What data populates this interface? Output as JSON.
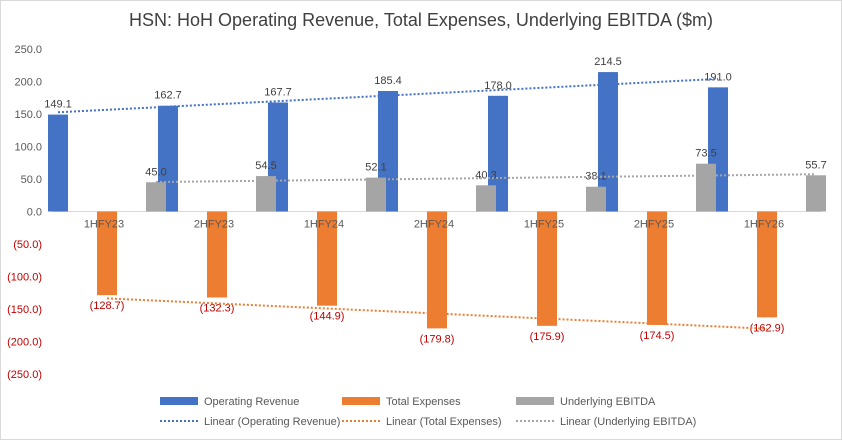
{
  "chart_data": {
    "type": "bar",
    "title": "HSN: HoH Operating Revenue, Total Expenses, Underlying EBITDA ($m)",
    "categories": [
      "1HFY23",
      "2HFY23",
      "1HFY24",
      "2HFY24",
      "1HFY25",
      "2HFY25",
      "1HFY26"
    ],
    "series": [
      {
        "name": "Operating Revenue",
        "color": "#4472c4",
        "values": [
          149.1,
          162.7,
          167.7,
          185.4,
          178.0,
          214.5,
          191.0
        ],
        "labels": [
          "149.1",
          "162.7",
          "167.7",
          "185.4",
          "178.0",
          "214.5",
          "191.0"
        ]
      },
      {
        "name": "Total Expenses",
        "color": "#ed7d31",
        "values": [
          -128.7,
          -132.3,
          -144.9,
          -179.8,
          -175.9,
          -174.5,
          -162.9
        ],
        "labels": [
          "(128.7)",
          "(132.3)",
          "(144.9)",
          "(179.8)",
          "(175.9)",
          "(174.5)",
          "(162.9)"
        ]
      },
      {
        "name": "Underlying EBITDA",
        "color": "#a5a5a5",
        "values": [
          45.0,
          54.5,
          52.1,
          40.3,
          38.1,
          73.5,
          55.7
        ],
        "labels": [
          "45.0",
          "54.5",
          "52.1",
          "40.3",
          "38.1",
          "73.5",
          "55.7"
        ]
      }
    ],
    "trendlines": [
      {
        "name": "Linear (Operating Revenue)",
        "color": "#4472c4",
        "series": 0
      },
      {
        "name": "Linear (Total Expenses)",
        "color": "#ed7d31",
        "series": 1
      },
      {
        "name": "Linear (Underlying EBITDA)",
        "color": "#a5a5a5",
        "series": 2
      }
    ],
    "ylim": [
      -250,
      250
    ],
    "yticks": [
      250,
      200,
      150,
      100,
      50,
      0,
      -50,
      -100,
      -150,
      -200,
      -250
    ],
    "ytick_labels": [
      "250.0",
      "200.0",
      "150.0",
      "100.0",
      "50.0",
      "0.0",
      "(50.0)",
      "(100.0)",
      "(150.0)",
      "(200.0)",
      "(250.0)"
    ],
    "negative_label_color": "#c00000",
    "xlabel": "",
    "ylabel": "",
    "grid": false,
    "legend": "bottom"
  }
}
